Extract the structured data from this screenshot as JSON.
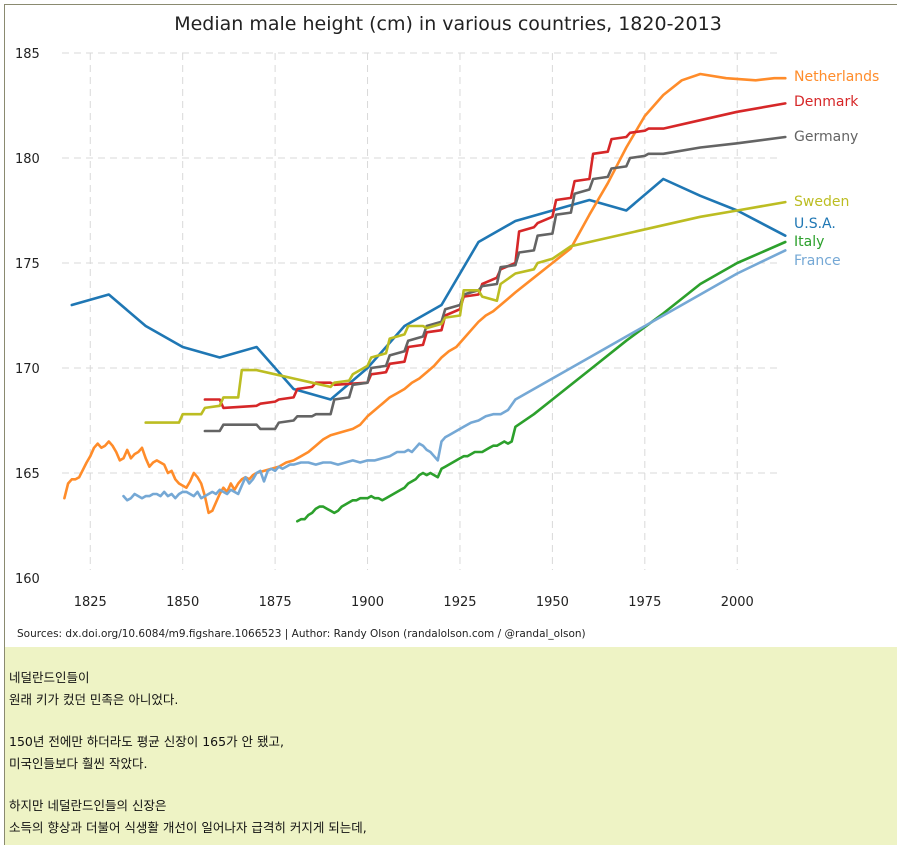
{
  "chart_data": {
    "type": "line",
    "title": "Median male height (cm) in various countries, 1820-2013",
    "xlabel": "",
    "ylabel": "",
    "xlim": [
      1816,
      2014
    ],
    "ylim": [
      160,
      185
    ],
    "xticks": [
      1825,
      1850,
      1875,
      1900,
      1925,
      1950,
      1975,
      2000
    ],
    "yticks": [
      160,
      165,
      170,
      175,
      180,
      185
    ],
    "grid": true,
    "source": "Sources: dx.doi.org/10.6084/m9.figshare.1066523 | Author: Randy Olson (randalolson.com / @randal_olson)",
    "series": [
      {
        "name": "U.S.A.",
        "color": "#1f77b4",
        "x": [
          1820,
          1830,
          1840,
          1850,
          1860,
          1870,
          1880,
          1890,
          1900,
          1910,
          1920,
          1930,
          1940,
          1950,
          1960,
          1970,
          1980,
          1990,
          2000,
          2013
        ],
        "y": [
          173.0,
          173.5,
          172.0,
          171.0,
          170.5,
          171.0,
          169.0,
          168.5,
          170.0,
          172.0,
          173.0,
          176.0,
          177.0,
          177.5,
          178.0,
          177.5,
          179.0,
          178.2,
          177.5,
          176.3
        ]
      },
      {
        "name": "Netherlands",
        "color": "#ff8c2a",
        "x": [
          1818,
          1819,
          1820,
          1821,
          1822,
          1824,
          1825,
          1826,
          1827,
          1828,
          1829,
          1830,
          1831,
          1832,
          1833,
          1834,
          1835,
          1836,
          1837,
          1838,
          1839,
          1840,
          1841,
          1842,
          1843,
          1844,
          1845,
          1846,
          1847,
          1848,
          1849,
          1850,
          1851,
          1852,
          1853,
          1854,
          1855,
          1856,
          1857,
          1858,
          1859,
          1860,
          1861,
          1862,
          1863,
          1864,
          1865,
          1866,
          1867,
          1868,
          1869,
          1870,
          1872,
          1874,
          1876,
          1878,
          1880,
          1882,
          1884,
          1886,
          1888,
          1890,
          1892,
          1894,
          1896,
          1898,
          1900,
          1902,
          1904,
          1906,
          1908,
          1910,
          1912,
          1914,
          1916,
          1918,
          1920,
          1922,
          1924,
          1926,
          1928,
          1930,
          1932,
          1934,
          1936,
          1938,
          1940,
          1945,
          1950,
          1955,
          1960,
          1965,
          1970,
          1975,
          1980,
          1985,
          1990,
          1997,
          2005,
          2010,
          2013
        ],
        "y": [
          163.8,
          164.5,
          164.7,
          164.7,
          164.8,
          165.5,
          165.8,
          166.2,
          166.4,
          166.2,
          166.3,
          166.5,
          166.3,
          166.0,
          165.6,
          165.7,
          166.1,
          165.7,
          165.9,
          166.0,
          166.2,
          165.7,
          165.3,
          165.5,
          165.6,
          165.5,
          165.4,
          165.0,
          165.1,
          164.7,
          164.5,
          164.4,
          164.3,
          164.6,
          165.0,
          164.8,
          164.5,
          163.9,
          163.1,
          163.2,
          163.6,
          164.0,
          164.3,
          164.1,
          164.5,
          164.2,
          164.5,
          164.7,
          164.8,
          164.7,
          164.9,
          165.0,
          165.1,
          165.2,
          165.3,
          165.5,
          165.6,
          165.8,
          166.0,
          166.3,
          166.6,
          166.8,
          166.9,
          167.0,
          167.1,
          167.3,
          167.7,
          168.0,
          168.3,
          168.6,
          168.8,
          169.0,
          169.3,
          169.5,
          169.8,
          170.1,
          170.5,
          170.8,
          171.0,
          171.4,
          171.8,
          172.2,
          172.5,
          172.7,
          173.0,
          173.3,
          173.6,
          174.3,
          175.0,
          175.7,
          177.3,
          178.8,
          180.5,
          182.0,
          183.0,
          183.7,
          184.0,
          183.8,
          183.7,
          183.8,
          183.8
        ]
      },
      {
        "name": "Denmark",
        "color": "#d62728",
        "x": [
          1856,
          1860,
          1861,
          1870,
          1871,
          1875,
          1876,
          1880,
          1881,
          1885,
          1886,
          1890,
          1891,
          1900,
          1901,
          1905,
          1906,
          1910,
          1911,
          1915,
          1916,
          1920,
          1921,
          1925,
          1926,
          1930,
          1931,
          1935,
          1936,
          1940,
          1941,
          1945,
          1946,
          1950,
          1951,
          1955,
          1956,
          1960,
          1961,
          1965,
          1966,
          1970,
          1971,
          1975,
          1976,
          1980,
          1990,
          2000,
          2013
        ],
        "y": [
          168.5,
          168.5,
          168.1,
          168.2,
          168.3,
          168.4,
          168.5,
          168.6,
          169.0,
          169.1,
          169.3,
          169.3,
          169.2,
          169.3,
          169.7,
          169.8,
          170.2,
          170.3,
          171.0,
          171.1,
          171.7,
          171.8,
          172.5,
          172.8,
          173.4,
          173.5,
          174.0,
          174.3,
          174.7,
          175.0,
          176.5,
          176.7,
          176.9,
          177.2,
          178.0,
          178.1,
          178.9,
          179.0,
          180.2,
          180.3,
          180.9,
          181.0,
          181.2,
          181.3,
          181.4,
          181.4,
          181.8,
          182.2,
          182.6
        ]
      },
      {
        "name": "Germany",
        "color": "#646464",
        "x": [
          1856,
          1860,
          1861,
          1870,
          1871,
          1875,
          1876,
          1880,
          1881,
          1885,
          1886,
          1890,
          1891,
          1895,
          1896,
          1900,
          1901,
          1905,
          1906,
          1910,
          1911,
          1915,
          1916,
          1920,
          1921,
          1925,
          1926,
          1930,
          1931,
          1935,
          1936,
          1940,
          1941,
          1945,
          1946,
          1950,
          1951,
          1955,
          1956,
          1960,
          1961,
          1965,
          1966,
          1970,
          1971,
          1975,
          1976,
          1980,
          1990,
          2000,
          2013
        ],
        "y": [
          167.0,
          167.0,
          167.3,
          167.3,
          167.1,
          167.1,
          167.4,
          167.5,
          167.7,
          167.7,
          167.8,
          167.8,
          168.5,
          168.6,
          169.2,
          169.3,
          170.0,
          170.1,
          170.6,
          170.8,
          171.3,
          171.5,
          172.0,
          172.2,
          172.8,
          173.0,
          173.5,
          173.7,
          173.9,
          174.0,
          174.8,
          174.9,
          175.5,
          175.6,
          176.3,
          176.4,
          177.3,
          177.4,
          178.3,
          178.5,
          179.0,
          179.1,
          179.5,
          179.6,
          180.0,
          180.1,
          180.2,
          180.2,
          180.5,
          180.7,
          181.0
        ]
      },
      {
        "name": "Sweden",
        "color": "#bcbd22",
        "x": [
          1840,
          1845,
          1849,
          1850,
          1855,
          1856,
          1860,
          1861,
          1865,
          1866,
          1870,
          1875,
          1880,
          1885,
          1890,
          1891,
          1895,
          1896,
          1900,
          1901,
          1905,
          1906,
          1910,
          1911,
          1915,
          1916,
          1920,
          1921,
          1925,
          1926,
          1930,
          1931,
          1935,
          1936,
          1940,
          1945,
          1946,
          1950,
          1955,
          1960,
          1970,
          1980,
          1990,
          2000,
          2013
        ],
        "y": [
          167.4,
          167.4,
          167.4,
          167.8,
          167.8,
          168.1,
          168.2,
          168.6,
          168.6,
          169.9,
          169.9,
          169.7,
          169.5,
          169.3,
          169.1,
          169.3,
          169.4,
          169.7,
          170.1,
          170.5,
          170.7,
          171.4,
          171.6,
          172.0,
          172.0,
          171.9,
          172.1,
          172.4,
          172.5,
          173.7,
          173.7,
          173.4,
          173.2,
          174.0,
          174.5,
          174.7,
          175.0,
          175.2,
          175.8,
          176.0,
          176.4,
          176.8,
          177.2,
          177.5,
          177.9
        ]
      },
      {
        "name": "Italy",
        "color": "#2ca02c",
        "x": [
          1881,
          1882,
          1883,
          1884,
          1885,
          1886,
          1887,
          1888,
          1889,
          1890,
          1891,
          1892,
          1893,
          1894,
          1895,
          1896,
          1897,
          1898,
          1899,
          1900,
          1901,
          1902,
          1903,
          1904,
          1905,
          1906,
          1907,
          1908,
          1909,
          1910,
          1911,
          1912,
          1913,
          1914,
          1915,
          1916,
          1917,
          1918,
          1919,
          1920,
          1921,
          1922,
          1923,
          1924,
          1925,
          1926,
          1927,
          1928,
          1929,
          1930,
          1931,
          1932,
          1933,
          1934,
          1935,
          1936,
          1937,
          1938,
          1939,
          1940,
          1945,
          1950,
          1960,
          1970,
          1980,
          1990,
          2000,
          2013
        ],
        "y": [
          162.7,
          162.8,
          162.8,
          163.0,
          163.1,
          163.3,
          163.4,
          163.4,
          163.3,
          163.2,
          163.1,
          163.2,
          163.4,
          163.5,
          163.6,
          163.7,
          163.7,
          163.8,
          163.8,
          163.8,
          163.9,
          163.8,
          163.8,
          163.7,
          163.8,
          163.9,
          164.0,
          164.1,
          164.2,
          164.3,
          164.5,
          164.6,
          164.7,
          164.9,
          165.0,
          164.9,
          165.0,
          164.9,
          164.8,
          165.2,
          165.3,
          165.4,
          165.5,
          165.6,
          165.7,
          165.8,
          165.8,
          165.9,
          166.0,
          166.0,
          166.0,
          166.1,
          166.2,
          166.3,
          166.3,
          166.4,
          166.5,
          166.4,
          166.5,
          167.2,
          167.8,
          168.5,
          169.9,
          171.3,
          172.6,
          174.0,
          175.0,
          176.0
        ]
      },
      {
        "name": "France",
        "color": "#75a8d5",
        "x": [
          1834,
          1835,
          1836,
          1837,
          1838,
          1839,
          1840,
          1841,
          1842,
          1843,
          1844,
          1845,
          1846,
          1847,
          1848,
          1849,
          1850,
          1851,
          1852,
          1853,
          1854,
          1855,
          1856,
          1857,
          1858,
          1859,
          1860,
          1861,
          1862,
          1863,
          1864,
          1865,
          1866,
          1867,
          1868,
          1869,
          1870,
          1871,
          1872,
          1873,
          1874,
          1875,
          1876,
          1877,
          1878,
          1879,
          1880,
          1882,
          1884,
          1886,
          1888,
          1890,
          1892,
          1894,
          1896,
          1898,
          1900,
          1902,
          1904,
          1906,
          1908,
          1910,
          1911,
          1912,
          1913,
          1914,
          1915,
          1916,
          1917,
          1918,
          1919,
          1920,
          1921,
          1922,
          1924,
          1926,
          1928,
          1930,
          1932,
          1934,
          1936,
          1938,
          1940,
          1945,
          1950,
          1960,
          1970,
          1980,
          1990,
          2000,
          2013
        ],
        "y": [
          163.9,
          163.7,
          163.8,
          164.0,
          163.9,
          163.8,
          163.9,
          163.9,
          164.0,
          164.0,
          163.9,
          164.1,
          163.9,
          164.0,
          163.8,
          164.0,
          164.1,
          164.1,
          164.0,
          163.9,
          164.1,
          163.8,
          163.9,
          164.0,
          164.1,
          164.0,
          164.2,
          164.1,
          164.0,
          164.2,
          164.1,
          164.0,
          164.4,
          164.8,
          164.5,
          164.7,
          165.0,
          165.1,
          164.6,
          165.1,
          165.2,
          165.1,
          165.3,
          165.2,
          165.3,
          165.4,
          165.4,
          165.5,
          165.5,
          165.4,
          165.5,
          165.5,
          165.4,
          165.5,
          165.6,
          165.5,
          165.6,
          165.6,
          165.7,
          165.8,
          166.0,
          166.0,
          166.1,
          166.0,
          166.2,
          166.4,
          166.3,
          166.1,
          166.0,
          165.8,
          165.6,
          166.5,
          166.7,
          166.8,
          167.0,
          167.2,
          167.4,
          167.5,
          167.7,
          167.8,
          167.8,
          168.0,
          168.5,
          169.0,
          169.5,
          170.5,
          171.5,
          172.5,
          173.5,
          174.5,
          175.6
        ]
      }
    ]
  },
  "caption": {
    "paragraphs": [
      [
        "네덜란드인들이",
        "원래 키가 컸던 민족은 아니었다."
      ],
      [
        "150년 전에만 하더라도 평균 신장이 165가 안 됐고,",
        "미국인들보다 훨씬 작았다."
      ],
      [
        "하지만 네덜란드인들의 신장은",
        "소득의 향상과 더불어 식생활 개선이 일어나자 급격히 커지게 되는데,"
      ]
    ]
  }
}
